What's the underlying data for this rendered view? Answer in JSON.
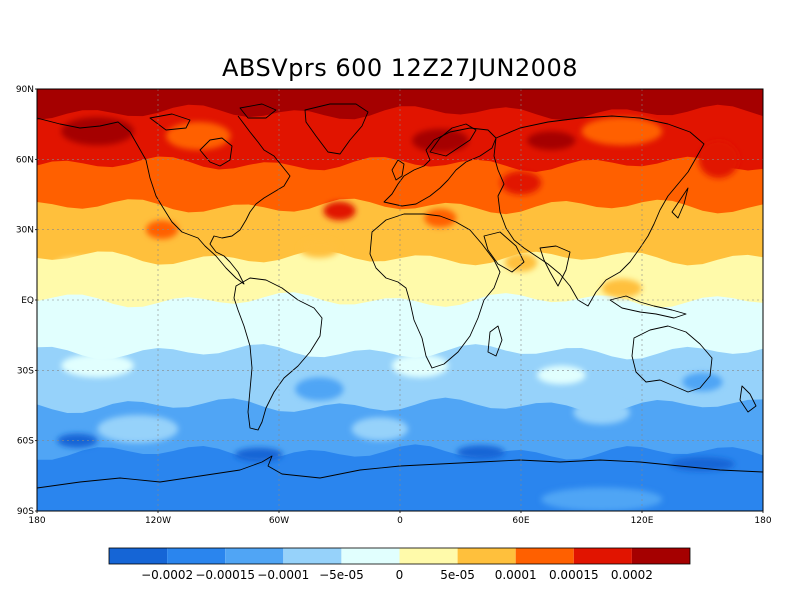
{
  "title": "ABSVprs 600 12Z27JUN2008",
  "map": {
    "lat_ticks": [
      "90N",
      "60N",
      "30N",
      "EQ",
      "30S",
      "60S",
      "90S"
    ],
    "lon_ticks": [
      "180",
      "120W",
      "60W",
      "0",
      "60E",
      "120E",
      "180"
    ],
    "grid": "dotted"
  },
  "colorbar": {
    "colors": [
      "#1565d6",
      "#2a85ee",
      "#50a5f5",
      "#96d2fa",
      "#e1fffe",
      "#fffaaa",
      "#ffc03c",
      "#ff6000",
      "#e11400",
      "#a50000"
    ],
    "labels": [
      "−0.0002",
      "−0.00015",
      "−0.0001",
      "−5e-05",
      "0",
      "5e-05",
      "0.0001",
      "0.00015",
      "0.0002"
    ]
  },
  "bands": [
    {
      "color": "#a50000",
      "lat_from": 90,
      "lat_to": 80
    },
    {
      "color": "#e11400",
      "lat_from": 80,
      "lat_to": 58
    },
    {
      "color": "#ff6000",
      "lat_from": 58,
      "lat_to": 40
    },
    {
      "color": "#ffc03c",
      "lat_from": 40,
      "lat_to": 18
    },
    {
      "color": "#fffaaa",
      "lat_from": 18,
      "lat_to": 0
    },
    {
      "color": "#e1fffe",
      "lat_from": 0,
      "lat_to": -22
    },
    {
      "color": "#96d2fa",
      "lat_from": -22,
      "lat_to": -45
    },
    {
      "color": "#50a5f5",
      "lat_from": -45,
      "lat_to": -65
    },
    {
      "color": "#2a85ee",
      "lat_from": -65,
      "lat_to": -90
    }
  ],
  "patches": [
    {
      "color": "#a50000",
      "lon": -150,
      "lat": 72,
      "rlon": 18,
      "rlat": 6
    },
    {
      "color": "#a50000",
      "lon": 20,
      "lat": 68,
      "rlon": 14,
      "rlat": 5
    },
    {
      "color": "#a50000",
      "lon": 75,
      "lat": 68,
      "rlon": 12,
      "rlat": 4
    },
    {
      "color": "#ff6000",
      "lon": -100,
      "lat": 70,
      "rlon": 16,
      "rlat": 6
    },
    {
      "color": "#ff6000",
      "lon": 110,
      "lat": 72,
      "rlon": 20,
      "rlat": 6
    },
    {
      "color": "#e11400",
      "lon": -30,
      "lat": 38,
      "rlon": 8,
      "rlat": 4
    },
    {
      "color": "#e11400",
      "lon": 60,
      "lat": 50,
      "rlon": 10,
      "rlat": 5
    },
    {
      "color": "#e11400",
      "lon": 158,
      "lat": 60,
      "rlon": 10,
      "rlat": 8
    },
    {
      "color": "#ff6000",
      "lon": -118,
      "lat": 30,
      "rlon": 8,
      "rlat": 4
    },
    {
      "color": "#ff6000",
      "lon": 20,
      "lat": 35,
      "rlon": 8,
      "rlat": 4
    },
    {
      "color": "#ffc03c",
      "lon": -40,
      "lat": 22,
      "rlon": 10,
      "rlat": 4
    },
    {
      "color": "#ffc03c",
      "lon": 60,
      "lat": 16,
      "rlon": 8,
      "rlat": 4
    },
    {
      "color": "#ffc03c",
      "lon": 110,
      "lat": 5,
      "rlon": 10,
      "rlat": 4
    },
    {
      "color": "#fffaaa",
      "lon": -160,
      "lat": 14,
      "rlon": 12,
      "rlat": 4
    },
    {
      "color": "#e1fffe",
      "lon": -150,
      "lat": -28,
      "rlon": 18,
      "rlat": 5
    },
    {
      "color": "#e1fffe",
      "lon": 10,
      "lat": -28,
      "rlon": 14,
      "rlat": 5
    },
    {
      "color": "#e1fffe",
      "lon": 80,
      "lat": -32,
      "rlon": 12,
      "rlat": 4
    },
    {
      "color": "#96d2fa",
      "lon": -130,
      "lat": -55,
      "rlon": 20,
      "rlat": 6
    },
    {
      "color": "#96d2fa",
      "lon": -10,
      "lat": -55,
      "rlon": 14,
      "rlat": 5
    },
    {
      "color": "#96d2fa",
      "lon": 100,
      "lat": -48,
      "rlon": 14,
      "rlat": 5
    },
    {
      "color": "#50a5f5",
      "lon": -40,
      "lat": -38,
      "rlon": 12,
      "rlat": 5
    },
    {
      "color": "#50a5f5",
      "lon": 150,
      "lat": -35,
      "rlon": 10,
      "rlat": 4
    },
    {
      "color": "#1565d6",
      "lon": -160,
      "lat": -60,
      "rlon": 10,
      "rlat": 3
    },
    {
      "color": "#1565d6",
      "lon": -70,
      "lat": -66,
      "rlon": 12,
      "rlat": 3
    },
    {
      "color": "#1565d6",
      "lon": 40,
      "lat": -65,
      "rlon": 12,
      "rlat": 3
    },
    {
      "color": "#1565d6",
      "lon": 150,
      "lat": -70,
      "rlon": 16,
      "rlat": 3
    },
    {
      "color": "#50a5f5",
      "lon": 100,
      "lat": -85,
      "rlon": 30,
      "rlat": 5
    }
  ]
}
